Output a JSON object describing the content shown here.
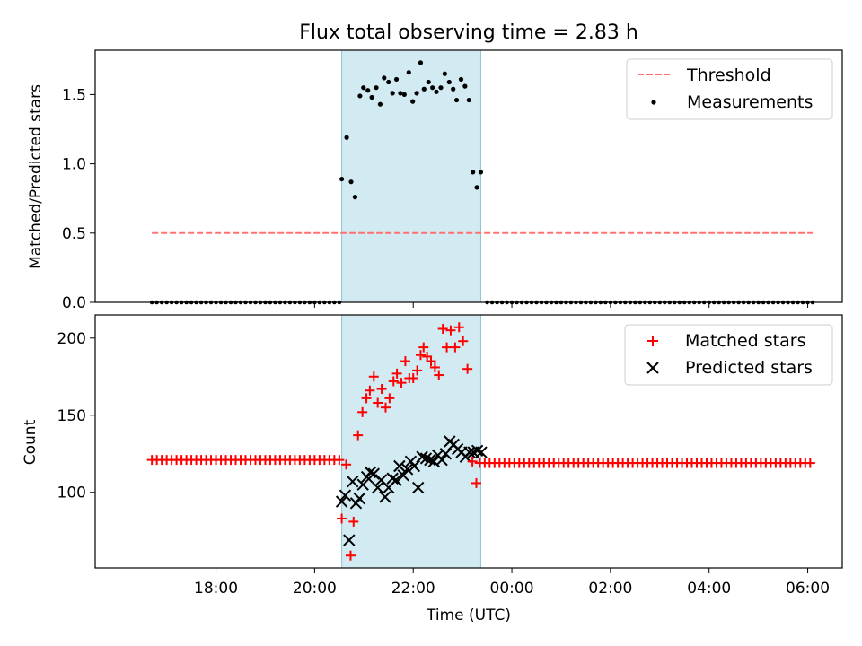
{
  "chart_data": {
    "title": "Flux total observing time = 2.83 h",
    "highlight": {
      "start_h": 20.55,
      "end_h": 23.37,
      "color": "#add8e6"
    },
    "x_range_h": [
      15.55,
      30.7
    ],
    "xlabel": "Time (UTC)",
    "xticks": [
      {
        "h": 18,
        "label": "18:00"
      },
      {
        "h": 20,
        "label": "20:00"
      },
      {
        "h": 22,
        "label": "22:00"
      },
      {
        "h": 24,
        "label": "00:00"
      },
      {
        "h": 26,
        "label": "02:00"
      },
      {
        "h": 28,
        "label": "04:00"
      },
      {
        "h": 30,
        "label": "06:00"
      }
    ],
    "top_panel": {
      "type": "scatter",
      "ylabel": "Matched/Predicted stars",
      "ylim": [
        0,
        1.82
      ],
      "yticks": [
        {
          "v": 0,
          "label": "0.0"
        },
        {
          "v": 0.5,
          "label": "0.5"
        },
        {
          "v": 1.0,
          "label": "1.0"
        },
        {
          "v": 1.5,
          "label": "1.5"
        }
      ],
      "threshold": {
        "value": 0.5,
        "x_start": 16.7,
        "x_end": 30.1,
        "color": "#ff7070",
        "label": "Threshold"
      },
      "measurements_label": "Measurements",
      "zero_runs": [
        {
          "start": 16.7,
          "end": 20.55,
          "step": 0.1
        },
        {
          "start": 23.5,
          "end": 30.1,
          "step": 0.1
        }
      ],
      "measurements": [
        [
          20.55,
          0.89
        ],
        [
          20.65,
          1.19
        ],
        [
          20.74,
          0.87
        ],
        [
          20.82,
          0.76
        ],
        [
          20.92,
          1.49
        ],
        [
          20.99,
          1.55
        ],
        [
          21.08,
          1.53
        ],
        [
          21.16,
          1.48
        ],
        [
          21.25,
          1.55
        ],
        [
          21.33,
          1.43
        ],
        [
          21.41,
          1.62
        ],
        [
          21.5,
          1.59
        ],
        [
          21.58,
          1.51
        ],
        [
          21.66,
          1.61
        ],
        [
          21.74,
          1.51
        ],
        [
          21.82,
          1.5
        ],
        [
          21.91,
          1.66
        ],
        [
          21.99,
          1.45
        ],
        [
          22.07,
          1.51
        ],
        [
          22.15,
          1.73
        ],
        [
          22.22,
          1.54
        ],
        [
          22.31,
          1.59
        ],
        [
          22.39,
          1.55
        ],
        [
          22.47,
          1.52
        ],
        [
          22.56,
          1.55
        ],
        [
          22.64,
          1.65
        ],
        [
          22.73,
          1.59
        ],
        [
          22.81,
          1.54
        ],
        [
          22.88,
          1.46
        ],
        [
          22.97,
          1.61
        ],
        [
          23.05,
          1.56
        ],
        [
          23.13,
          1.46
        ],
        [
          23.21,
          0.94
        ],
        [
          23.29,
          0.83
        ],
        [
          23.37,
          0.94
        ]
      ]
    },
    "bottom_panel": {
      "type": "scatter",
      "ylabel": "Count",
      "ylim": [
        51,
        215
      ],
      "yticks": [
        {
          "v": 100,
          "label": "100"
        },
        {
          "v": 150,
          "label": "150"
        },
        {
          "v": 200,
          "label": "200"
        }
      ],
      "matched_label": "Matched stars",
      "predicted_label": "Predicted stars",
      "matched_color": "#ff0000",
      "predicted_color": "#000000",
      "matched_runs": [
        {
          "start": 16.7,
          "end": 20.5,
          "step": 0.1,
          "value": 121
        },
        {
          "start": 23.35,
          "end": 30.1,
          "step": 0.1,
          "value": 119
        }
      ],
      "matched": [
        [
          20.55,
          83
        ],
        [
          20.64,
          118
        ],
        [
          20.73,
          59
        ],
        [
          20.79,
          81
        ],
        [
          20.88,
          137
        ],
        [
          20.97,
          152
        ],
        [
          21.05,
          161
        ],
        [
          21.12,
          166
        ],
        [
          21.2,
          175
        ],
        [
          21.28,
          158
        ],
        [
          21.36,
          167
        ],
        [
          21.44,
          155
        ],
        [
          21.52,
          161
        ],
        [
          21.6,
          172
        ],
        [
          21.67,
          177
        ],
        [
          21.76,
          171
        ],
        [
          21.84,
          185
        ],
        [
          21.92,
          174
        ],
        [
          22.0,
          174
        ],
        [
          22.08,
          179
        ],
        [
          22.15,
          189
        ],
        [
          22.21,
          194
        ],
        [
          22.28,
          188
        ],
        [
          22.36,
          185
        ],
        [
          22.44,
          181
        ],
        [
          22.52,
          176
        ],
        [
          22.6,
          206
        ],
        [
          22.68,
          194
        ],
        [
          22.76,
          205
        ],
        [
          22.85,
          194
        ],
        [
          22.93,
          207
        ],
        [
          23.01,
          198
        ],
        [
          23.1,
          180
        ],
        [
          23.2,
          120
        ],
        [
          23.28,
          106
        ]
      ],
      "predicted": [
        [
          20.55,
          94
        ],
        [
          20.62,
          98
        ],
        [
          20.7,
          69
        ],
        [
          20.77,
          107
        ],
        [
          20.84,
          93
        ],
        [
          20.91,
          96
        ],
        [
          20.98,
          105
        ],
        [
          21.06,
          110
        ],
        [
          21.13,
          113
        ],
        [
          21.2,
          112
        ],
        [
          21.28,
          103
        ],
        [
          21.35,
          108
        ],
        [
          21.43,
          97
        ],
        [
          21.5,
          103
        ],
        [
          21.58,
          109
        ],
        [
          21.65,
          108
        ],
        [
          21.72,
          117
        ],
        [
          21.8,
          111
        ],
        [
          21.88,
          115
        ],
        [
          21.95,
          120
        ],
        [
          22.02,
          117
        ],
        [
          22.1,
          103
        ],
        [
          22.18,
          123
        ],
        [
          22.26,
          122
        ],
        [
          22.34,
          121
        ],
        [
          22.42,
          120
        ],
        [
          22.5,
          124
        ],
        [
          22.58,
          121
        ],
        [
          22.66,
          125
        ],
        [
          22.74,
          133
        ],
        [
          22.82,
          131
        ],
        [
          22.9,
          128
        ],
        [
          22.98,
          126
        ],
        [
          23.06,
          123
        ],
        [
          23.14,
          126
        ],
        [
          23.22,
          126
        ],
        [
          23.3,
          127
        ],
        [
          23.38,
          126
        ]
      ]
    }
  }
}
